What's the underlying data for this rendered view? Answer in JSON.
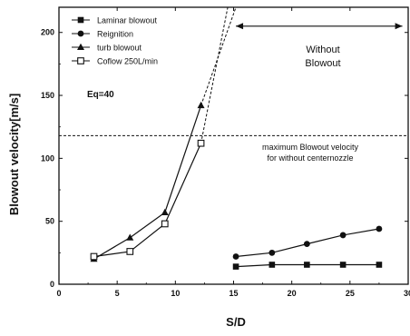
{
  "chart_data": {
    "type": "line",
    "xlabel": "S/D",
    "ylabel": "Blowout velocity[m/s]",
    "xlim": [
      0,
      30
    ],
    "ylim": [
      0,
      220
    ],
    "x_ticks": [
      "0",
      "5",
      "10",
      "15",
      "20",
      "25",
      "30"
    ],
    "y_ticks": [
      "0",
      "50",
      "100",
      "150",
      "200"
    ],
    "grid": false,
    "legend_position": "top-left",
    "series": [
      {
        "name": "Laminar blowout",
        "marker": "square-filled",
        "x": [
          15.2,
          18.3,
          21.3,
          24.4,
          27.5
        ],
        "y": [
          14,
          15.5,
          15.5,
          15.5,
          15.5
        ]
      },
      {
        "name": "Reignition",
        "marker": "circle-filled",
        "x": [
          15.2,
          18.3,
          21.3,
          24.4,
          27.5
        ],
        "y": [
          22,
          25,
          32,
          39,
          44
        ]
      },
      {
        "name": "turb blowout",
        "marker": "triangle-filled",
        "x": [
          3.0,
          6.1,
          9.1,
          12.2
        ],
        "y": [
          20,
          37,
          57,
          142
        ],
        "extension_dashed_to": [
          15.2,
          220
        ]
      },
      {
        "name": "Coflow 250L/min",
        "marker": "square-open",
        "x": [
          3.0,
          6.1,
          9.1,
          12.2
        ],
        "y": [
          22,
          26,
          48,
          112
        ],
        "extension_dashed_to": [
          14.5,
          220
        ]
      }
    ],
    "reference_line": {
      "y": 118,
      "style": "dashed"
    },
    "annotations": {
      "eq": "Eq=40",
      "without_blowout_line1": "Without",
      "without_blowout_line2": "Blowout",
      "max_line1": "maximum Blowout velocity",
      "max_line2": "for without centernozzle"
    },
    "without_blowout_arrow": {
      "x_from": 15.2,
      "x_to": 29.5,
      "y": 205
    }
  }
}
